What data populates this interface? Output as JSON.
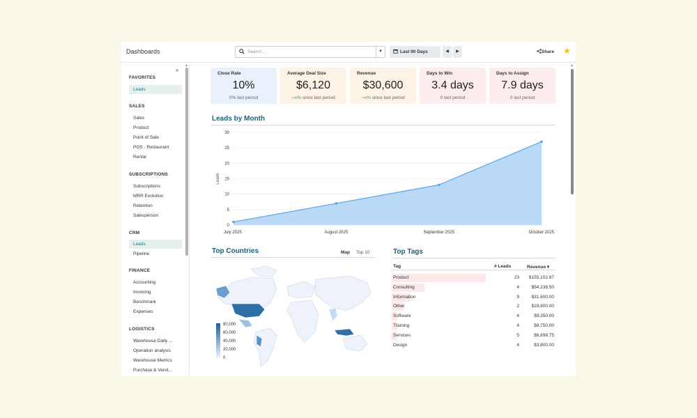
{
  "app": {
    "title": "Dashboards"
  },
  "search": {
    "placeholder": "Search..."
  },
  "date_filter": {
    "label": "Last 90 Days"
  },
  "share_label": "Share",
  "sidebar": {
    "sections": [
      {
        "title": "FAVORITES",
        "items": [
          {
            "label": "Leads",
            "active": true
          }
        ]
      },
      {
        "title": "SALES",
        "items": [
          {
            "label": "Sales"
          },
          {
            "label": "Product"
          },
          {
            "label": "Point of Sale"
          },
          {
            "label": "POS - Restaurant"
          },
          {
            "label": "Rental"
          }
        ]
      },
      {
        "title": "SUBSCRIPTIONS",
        "items": [
          {
            "label": "Subscriptions"
          },
          {
            "label": "MRR Evolution"
          },
          {
            "label": "Retention"
          },
          {
            "label": "Salesperson"
          }
        ]
      },
      {
        "title": "CRM",
        "items": [
          {
            "label": "Leads",
            "active": true
          },
          {
            "label": "Pipeline"
          }
        ]
      },
      {
        "title": "FINANCE",
        "items": [
          {
            "label": "Accounting"
          },
          {
            "label": "Invoicing"
          },
          {
            "label": "Benchmark"
          },
          {
            "label": "Expenses"
          }
        ]
      },
      {
        "title": "LOGISTICS",
        "items": [
          {
            "label": "Warehouse Daily ..."
          },
          {
            "label": "Operation analysis"
          },
          {
            "label": "Warehouse Metrics"
          },
          {
            "label": "Purchase & Vend..."
          }
        ]
      }
    ]
  },
  "kpis": [
    {
      "name": "Close Rate",
      "value": "10%",
      "sub": "0% last period",
      "color": "#e8f1fc"
    },
    {
      "name": "Average Deal Size",
      "value": "$6,120",
      "sub_arrow": "↑∞%",
      "sub": " since last period",
      "color": "#fdf2e6"
    },
    {
      "name": "Revenue",
      "value": "$30,600",
      "sub_arrow": "↑∞%",
      "sub": " since last period",
      "color": "#fdf2e6"
    },
    {
      "name": "Days to Win",
      "value": "3.4 days",
      "sub": "0 last period",
      "color": "#fdecec"
    },
    {
      "name": "Days to Assign",
      "value": "7.9 days",
      "sub": "0 last period",
      "color": "#fdecec"
    }
  ],
  "leads_chart": {
    "title": "Leads by Month"
  },
  "chart_data": {
    "type": "area",
    "categories": [
      "July 2025",
      "August 2025",
      "September 2025",
      "October 2025"
    ],
    "values": [
      1,
      7,
      13,
      27
    ],
    "ylabel": "Leads",
    "ylim": [
      0,
      30
    ],
    "yticks": [
      0,
      5,
      10,
      15,
      20,
      25,
      30
    ],
    "grid": true,
    "colors": {
      "fill": "#b9d9f7",
      "line": "#5aa7e3"
    }
  },
  "top_countries": {
    "title": "Top Countries",
    "tabs": [
      {
        "label": "Map",
        "active": true
      },
      {
        "label": "Top 10",
        "active": false
      }
    ],
    "legend": [
      "80,000",
      "60,000",
      "40,000",
      "20,000",
      "0"
    ]
  },
  "top_tags": {
    "title": "Top Tags",
    "columns": {
      "tag": "Tag",
      "leads": "# Leads",
      "revenue": "Revenue ▾"
    },
    "rows": [
      {
        "tag": "Product",
        "leads": "23",
        "revenue": "$155,102.87",
        "share": 1.0
      },
      {
        "tag": "Consulting",
        "leads": "4",
        "revenue": "$54,238.50",
        "share": 0.35
      },
      {
        "tag": "Information",
        "leads": "9",
        "revenue": "$31,600.00",
        "share": 0.2
      },
      {
        "tag": "Other",
        "leads": "2",
        "revenue": "$19,800.00",
        "share": 0.13
      },
      {
        "tag": "Software",
        "leads": "4",
        "revenue": "$9,350.00",
        "share": 0.06
      },
      {
        "tag": "Training",
        "leads": "4",
        "revenue": "$8,750.00",
        "share": 0.06
      },
      {
        "tag": "Services",
        "leads": "5",
        "revenue": "$6,898.75",
        "share": 0.05
      },
      {
        "tag": "Design",
        "leads": "4",
        "revenue": "$3,800.00",
        "share": 0.0
      }
    ]
  }
}
